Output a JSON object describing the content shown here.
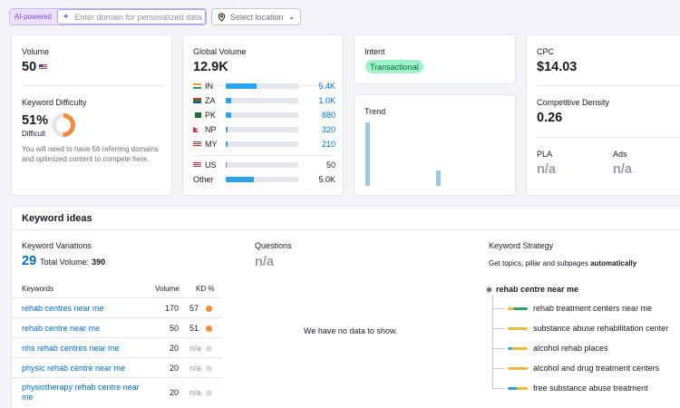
{
  "topbar": {
    "ai_badge": "AI-powered",
    "domain_placeholder": "Enter domain for personalized data",
    "location_placeholder": "Select location"
  },
  "volume": {
    "label": "Volume",
    "value": "50",
    "kd_label": "Keyword Difficulty",
    "kd_value": "51%",
    "kd_percent": 51,
    "kd_text": "Difficult",
    "kd_color": "#f08c3a",
    "kd_note": "You will need to have 56 referring domains and optimized content to compete here."
  },
  "global": {
    "label": "Global Volume",
    "value": "12.9K",
    "rows": [
      {
        "code": "IN",
        "value": "5.4K",
        "fill": 0.42
      },
      {
        "code": "ZA",
        "value": "1.0K",
        "fill": 0.08
      },
      {
        "code": "PK",
        "value": "880",
        "fill": 0.07
      },
      {
        "code": "NP",
        "value": "320",
        "fill": 0.03
      },
      {
        "code": "MY",
        "value": "210",
        "fill": 0.02
      }
    ],
    "us": {
      "code": "US",
      "value": "50",
      "fill": 0.01
    },
    "other": {
      "code": "Other",
      "value": "5.0K",
      "fill": 0.39
    }
  },
  "intent": {
    "label": "Intent",
    "badge": "Transactional"
  },
  "trend": {
    "label": "Trend",
    "values": [
      1.0,
      0,
      0,
      0,
      0,
      0,
      0,
      0,
      0,
      0,
      0.25,
      0,
      0,
      0,
      0,
      0,
      0,
      0,
      0,
      0
    ]
  },
  "cpc": {
    "label": "CPC",
    "value": "$14.03",
    "density_label": "Competitive Density",
    "density_value": "0.26",
    "pla_label": "PLA",
    "pla_value": "n/a",
    "ads_label": "Ads",
    "ads_value": "n/a"
  },
  "ideas": {
    "title": "Keyword ideas",
    "variations_label": "Keyword Variations",
    "variations_count": "29",
    "total_volume_label": "Total Volume:",
    "total_volume": "390",
    "col_keywords": "Keywords",
    "col_volume": "Volume",
    "col_kd": "KD %",
    "rows": [
      {
        "name": "rehab centres near me",
        "volume": "170",
        "kd": "57",
        "color": "#f08c3a"
      },
      {
        "name": "rehab centre near me",
        "volume": "50",
        "kd": "51",
        "color": "#f08c3a"
      },
      {
        "name": "nhs rehab centres near me",
        "volume": "20",
        "kd": "n/a",
        "color": "#dcdde3"
      },
      {
        "name": "physic rehab centre near me",
        "volume": "20",
        "kd": "n/a",
        "color": "#dcdde3"
      },
      {
        "name": "physiotherapy rehab centre near me",
        "volume": "20",
        "kd": "n/a",
        "color": "#dcdde3"
      }
    ],
    "questions_label": "Questions",
    "questions_value": "n/a",
    "no_data": "We have no data to show.",
    "strategy_label": "Keyword Strategy",
    "strategy_desc": "Get topics, pillar and subpages",
    "strategy_desc_bold": "automatically",
    "strategy_root": "rehab centre near me",
    "strategy_items": [
      "rehab treatment centers near me",
      "substance abuse rehabilitation center",
      "alcohol rehab places",
      "alcohol and drug treatment centers",
      "free substance abuse treatment"
    ]
  }
}
